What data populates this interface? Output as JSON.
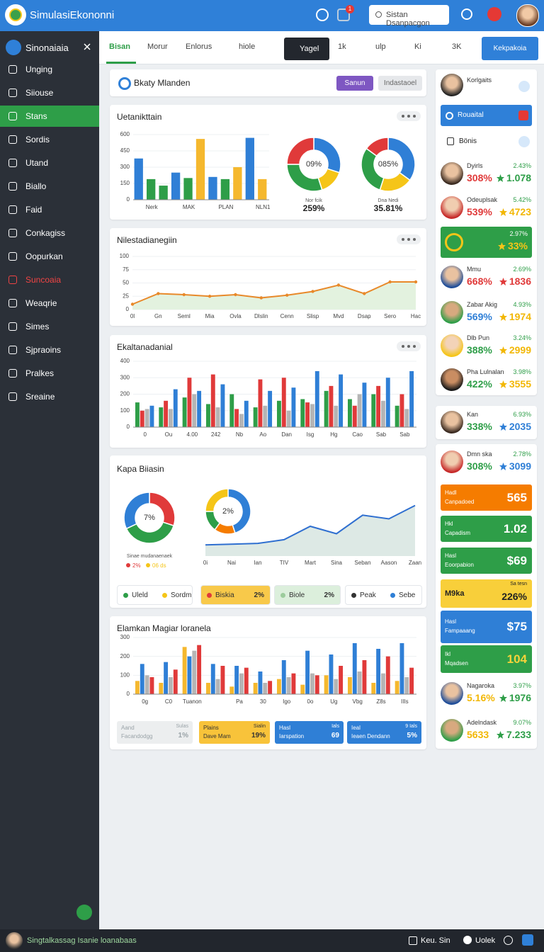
{
  "header": {
    "title": "SimulasiEkononni",
    "badge": "1",
    "search": "Sistan Dsanpacgon"
  },
  "sidebar": {
    "user": "Sinonaiaia",
    "items": [
      {
        "label": "Unging"
      },
      {
        "label": "Siiouse"
      },
      {
        "label": "Stans",
        "active": true
      },
      {
        "label": "Sordis"
      },
      {
        "label": "Utand"
      },
      {
        "label": "Biallo"
      },
      {
        "label": "Faid"
      },
      {
        "label": "Conkagiss"
      },
      {
        "label": "Oopurkan"
      },
      {
        "label": "Suncoaia",
        "alert": true
      },
      {
        "label": "Weaqrie"
      },
      {
        "label": "Simes"
      },
      {
        "label": "Sjpraoins"
      },
      {
        "label": "Pralkes"
      },
      {
        "label": "Sreaine"
      }
    ]
  },
  "tabs": {
    "items": [
      {
        "label": "Bisan",
        "active": true
      },
      {
        "label": "Morur"
      },
      {
        "label": "Enlorus"
      },
      {
        "label": "hiole"
      },
      {
        "label": "Yagel",
        "dark": true
      },
      {
        "label": "1k"
      },
      {
        "label": "ulp"
      },
      {
        "label": "Ki"
      },
      {
        "label": "3K"
      }
    ],
    "button": "Kekpakoia"
  },
  "toolbar": {
    "title": "Bkaty Mlanden",
    "primary": "Sanun",
    "secondary": "Indastaoel"
  },
  "chart_data": [
    {
      "type": "bar",
      "title": "Uetanikttain",
      "categories": [
        null,
        "Nerk",
        null,
        null,
        "MAK",
        null,
        null,
        "PLAN",
        null,
        null,
        "NLN1"
      ],
      "values": [
        380,
        190,
        130,
        250,
        200,
        560,
        210,
        190,
        300,
        570,
        190
      ],
      "colors": [
        "#2f7fd6",
        "#2e9e48",
        "#2e9e48",
        "#2f7fd6",
        "#2e9e48",
        "#f5b82e",
        "#2f7fd6",
        "#2e9e48",
        "#f5b82e",
        "#2f7fd6",
        "#f5b82e"
      ],
      "ylim": [
        0,
        600
      ],
      "yticks": [
        0,
        150,
        300,
        450,
        600
      ]
    },
    {
      "type": "donut",
      "center_label": "09%",
      "caption": "Nor fcik",
      "label": "259%",
      "values": [
        30,
        15,
        30,
        25
      ],
      "colors": [
        "#2f7fd6",
        "#f5c518",
        "#2e9e48",
        "#e03a3a"
      ]
    },
    {
      "type": "donut",
      "center_label": "085%",
      "caption": "Dna Nedi",
      "label": "35.81%",
      "values": [
        35,
        20,
        30,
        15
      ],
      "colors": [
        "#2f7fd6",
        "#f5c518",
        "#2e9e48",
        "#e03a3a"
      ]
    },
    {
      "type": "line",
      "title": "Nilestadianegiin",
      "categories": [
        "0l",
        "Gn",
        "Seml",
        "Mia",
        "Ovla",
        "Dlslin",
        "Cenn",
        "Slisp",
        "Mvd",
        "Dsap",
        "Sero",
        "Hac"
      ],
      "values": [
        10,
        30,
        28,
        25,
        28,
        22,
        27,
        34,
        46,
        30,
        52,
        52
      ],
      "color": "#e8892a",
      "fill": "#e3f2df",
      "markers": true,
      "ylim": [
        0,
        100
      ],
      "yticks": [
        0,
        25,
        50,
        75,
        100
      ]
    },
    {
      "type": "bar",
      "title": "Ekaltanadanial",
      "categories": [
        "0",
        "Ou",
        "4.00",
        "242",
        "Nb",
        "Ao",
        "Dan",
        "Isg",
        "Hg",
        "Cao",
        "Sab",
        "Sab"
      ],
      "series": [
        {
          "color": "#2e9e48",
          "values": [
            150,
            120,
            180,
            140,
            200,
            120,
            160,
            170,
            220,
            170,
            200,
            130
          ]
        },
        {
          "color": "#e03a3a",
          "values": [
            100,
            160,
            300,
            320,
            110,
            290,
            300,
            150,
            250,
            130,
            250,
            200
          ]
        },
        {
          "color": "#b5b5b5",
          "values": [
            110,
            110,
            200,
            120,
            80,
            130,
            100,
            140,
            130,
            200,
            160,
            110
          ]
        },
        {
          "color": "#2f7fd6",
          "values": [
            130,
            230,
            220,
            260,
            160,
            220,
            240,
            340,
            320,
            270,
            300,
            340
          ]
        }
      ],
      "ylim": [
        0,
        400
      ],
      "yticks": [
        0,
        100,
        200,
        300,
        400
      ]
    },
    {
      "type": "donut",
      "title": "Kapa Biiasin",
      "center_label": "7%",
      "caption": "Sinae mudanaenaek",
      "legend": [
        {
          "label": "2%",
          "color": "#e03a3a"
        },
        {
          "label": "06 ds",
          "color": "#f5c518"
        }
      ],
      "values": [
        30,
        38,
        32
      ],
      "colors": [
        "#e03a3a",
        "#2e9e48",
        "#2f7fd6"
      ]
    },
    {
      "type": "donut",
      "center_label": "2%",
      "values": [
        45,
        15,
        15,
        25
      ],
      "colors": [
        "#2f7fd6",
        "#f57c00",
        "#2e9e48",
        "#f5c518"
      ]
    },
    {
      "type": "line",
      "categories": [
        "0i",
        "Nai",
        "Ian",
        "TIV",
        "Mart",
        "Sina",
        "Seban",
        "Aason",
        "Zaan"
      ],
      "values": [
        15,
        16,
        17,
        22,
        40,
        30,
        55,
        50,
        68
      ],
      "color": "#2f6fd0",
      "fill": "#dde9e5",
      "ylim": [
        0,
        100
      ]
    },
    {
      "type": "bar",
      "title": "Elamkan Magiar loranela",
      "categories": [
        "0g",
        "C0",
        "Tuanon",
        null,
        "Pa",
        "30",
        "Igo",
        "0o",
        "Ug",
        "Vbg",
        "Z8s",
        "IIIs"
      ],
      "series": [
        {
          "color": "#f5b82e",
          "values": [
            70,
            60,
            250,
            60,
            40,
            60,
            80,
            50,
            100,
            90,
            60,
            70
          ]
        },
        {
          "color": "#2f7fd6",
          "values": [
            160,
            170,
            200,
            160,
            150,
            120,
            180,
            230,
            210,
            270,
            240,
            270
          ]
        },
        {
          "color": "#b5b5b5",
          "values": [
            100,
            90,
            230,
            80,
            110,
            60,
            90,
            110,
            80,
            120,
            110,
            90
          ]
        },
        {
          "color": "#e03a3a",
          "values": [
            90,
            130,
            260,
            150,
            140,
            70,
            110,
            100,
            150,
            180,
            200,
            140
          ]
        }
      ],
      "ylim": [
        0,
        300
      ],
      "yticks": [
        0,
        100,
        200,
        300
      ]
    }
  ],
  "chips": [
    {
      "label": "Uleld",
      "color": "#2e9e48"
    },
    {
      "label": "Sordm",
      "color": "#f5c518"
    },
    {
      "label": "Biskia",
      "value": "2%",
      "color": "#e03a3a",
      "bg": "#f8c94a"
    },
    {
      "label": "Biole",
      "value": "2%",
      "color": "#9ccc9c",
      "bg": "#dcefdc"
    },
    {
      "label": "Peak",
      "color": "#333333"
    },
    {
      "label": "Sebe",
      "color": "#2f7fd6"
    }
  ],
  "stat_cards": [
    {
      "title": "Aand",
      "subtitle": "Facandodgg",
      "top": "Sulas",
      "value": "1%",
      "bg": "#eceeef",
      "color": "#9aa3a8"
    },
    {
      "title": "Plains",
      "subtitle": "Dave Mam",
      "top": "Sialin",
      "value": "19%",
      "bg": "#f8c33a",
      "color": "#333333"
    },
    {
      "title": "Hasl",
      "subtitle": "Iarspation",
      "top": "Ials",
      "value": "69",
      "bg": "#2f7fd6",
      "color": "#ffffff"
    },
    {
      "title": "Ieal",
      "subtitle": "Ieaen Dendann",
      "top": "9 Ials",
      "value": "5%",
      "bg": "#2f7fd6",
      "color": "#ffffff"
    }
  ],
  "right": {
    "user": "Korlgaits",
    "button": "Rouaital",
    "section": "Bönis",
    "people": [
      {
        "name": "Dyirls",
        "top": "2.43%",
        "pct": "308%",
        "val": "1.078",
        "pct_color": "#e03a3a",
        "val_color": "#2e9e48"
      },
      {
        "name": "Odeuplsak",
        "top": "5.42%",
        "pct": "539%",
        "val": "4723",
        "pct_color": "#e03a3a",
        "val_color": "#f2b705"
      },
      {
        "top": "2.97%",
        "val": "33%",
        "bg": "#2e9e48",
        "val_color": "#f5c518"
      },
      {
        "name": "Mmu",
        "top": "2.69%",
        "pct": "668%",
        "val": "1836",
        "pct_color": "#e03a3a",
        "val_color": "#e03a3a"
      },
      {
        "name": "Zabar Akig",
        "top": "4.93%",
        "pct": "569%",
        "val": "1974",
        "pct_color": "#2f7fd6",
        "val_color": "#f2b705"
      },
      {
        "name": "Dlb Pun",
        "top": "3.24%",
        "pct": "388%",
        "val": "2999",
        "pct_color": "#2e9e48",
        "val_color": "#f2b705"
      },
      {
        "name": "Pha Lulnalan",
        "top": "3.98%",
        "pct": "422%",
        "val": "3555",
        "pct_color": "#2e9e48",
        "val_color": "#f2b705"
      }
    ],
    "solo": {
      "name": "Kan",
      "top": "6.93%",
      "pct": "338%",
      "val": "2035",
      "pct_color": "#2e9e48",
      "val_color": "#2f7fd6"
    },
    "lead": {
      "name": "Dmn ska",
      "top": "2.78%",
      "pct": "308%",
      "val": "3099",
      "pct_color": "#2e9e48",
      "val_color": "#2f7fd6"
    },
    "metrics": [
      {
        "title": "Hadl",
        "subtitle": "Canpadoed",
        "value": "565",
        "bg": "#f57c00",
        "color": "#ffffff"
      },
      {
        "title": "Hkl",
        "subtitle": "Capadism",
        "value": "1.02",
        "bg": "#2e9e48",
        "color": "#ffffff"
      },
      {
        "title": "Hasl",
        "subtitle": "Eoorpabion",
        "value": "$69",
        "bg": "#2e9e48",
        "color": "#ffffff"
      },
      {
        "top": "Sa tesn",
        "title": "M9ka",
        "value": "226%",
        "bg": "#f8cf3a",
        "color": "#222222"
      },
      {
        "title": "Hasl",
        "subtitle": "Fampaaang",
        "value": "$75",
        "bg": "#2f7fd6",
        "color": "#ffffff"
      },
      {
        "title": "Ikl",
        "subtitle": "Mqadsen",
        "value": "104",
        "bg": "#2e9e48",
        "color": "#f5d33a"
      }
    ],
    "tail": [
      {
        "name": "Nagaroka",
        "top": "3.97%",
        "pct": "5.16%",
        "val": "1976",
        "pct_color": "#f2b705",
        "val_color": "#2e9e48"
      },
      {
        "name": "Adelndask",
        "top": "9.07%",
        "pct": "5633",
        "val": "7.233",
        "pct_color": "#f2b705",
        "val_color": "#2e9e48"
      }
    ]
  },
  "footer": {
    "text": "Singtalkassag Isanie loanabaas",
    "links": [
      "Keu. Sin",
      "Uolek"
    ]
  }
}
